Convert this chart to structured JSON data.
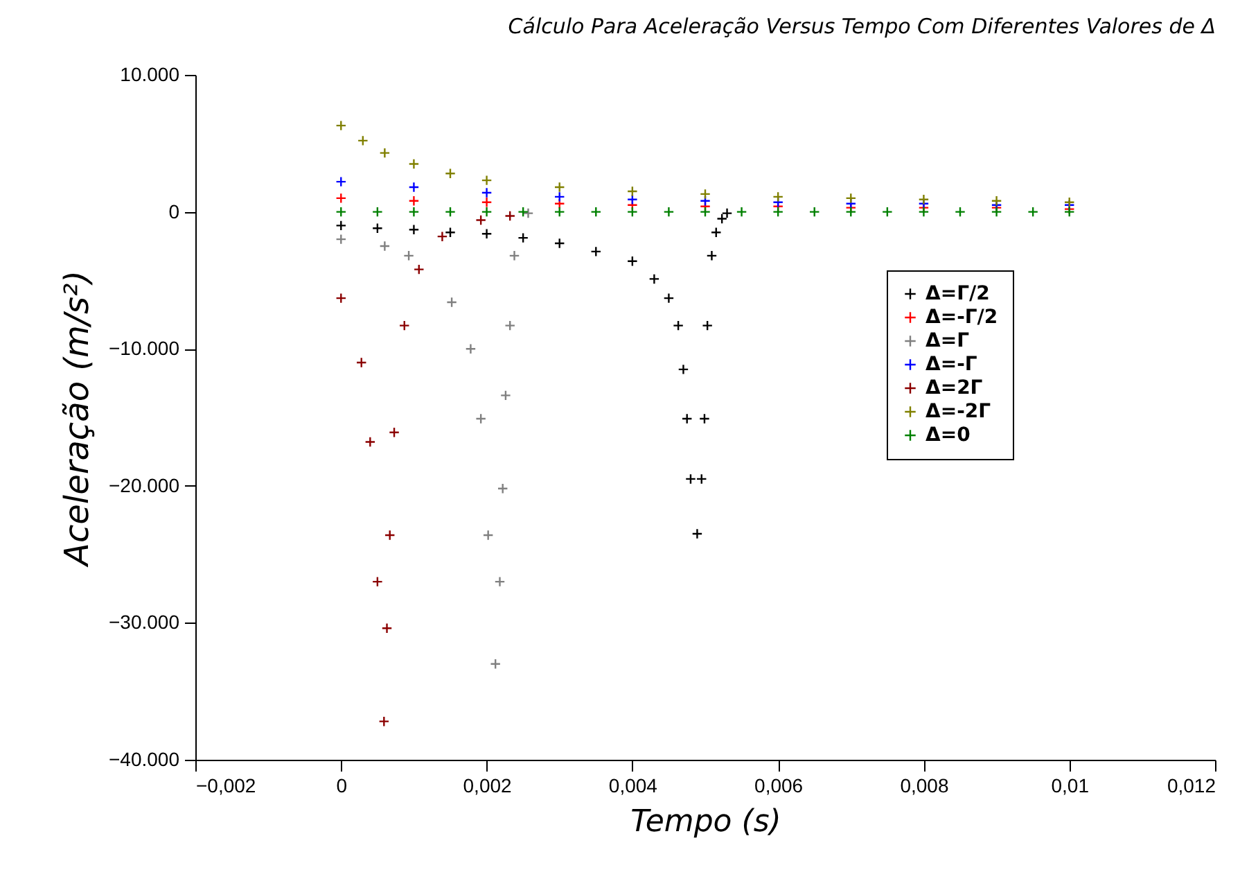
{
  "chart_data": {
    "type": "scatter",
    "title": "Cálculo Para Aceleração Versus Tempo Com Diferentes Valores de Δ",
    "xlabel": "Tempo (s)",
    "ylabel": "Aceleração (m/s²)",
    "xlim": [
      -0.002,
      0.012
    ],
    "ylim": [
      -40000,
      10000
    ],
    "xticks": [
      {
        "value": -0.002,
        "label": "−0,002"
      },
      {
        "value": 0,
        "label": "0"
      },
      {
        "value": 0.002,
        "label": "0,002"
      },
      {
        "value": 0.004,
        "label": "0,004"
      },
      {
        "value": 0.006,
        "label": "0,006"
      },
      {
        "value": 0.008,
        "label": "0,008"
      },
      {
        "value": 0.01,
        "label": "0,01"
      },
      {
        "value": 0.012,
        "label": "0,012"
      }
    ],
    "yticks": [
      {
        "value": -40000,
        "label": "−40.000"
      },
      {
        "value": -30000,
        "label": "−30.000"
      },
      {
        "value": -20000,
        "label": "−20.000"
      },
      {
        "value": -10000,
        "label": "−10.000"
      },
      0,
      {
        "value": 10000,
        "label": "10.000"
      }
    ],
    "grid": false,
    "legend": "right",
    "series": [
      {
        "name": "Δ=Γ/2",
        "color": "#000000",
        "marker": "cross",
        "x": [
          0,
          0.0005,
          0.001,
          0.0015,
          0.002,
          0.0025,
          0.003,
          0.0035,
          0.004,
          0.0043,
          0.0045,
          0.00463,
          0.0047,
          0.00475,
          0.0048,
          0.00489,
          0.00495,
          0.00499,
          0.00503,
          0.00509,
          0.00515,
          0.00523,
          0.0053
        ],
        "values": [
          -1000,
          -1200,
          -1300,
          -1500,
          -1600,
          -1900,
          -2300,
          -2900,
          -3600,
          -4900,
          -6300,
          -8300,
          -11500,
          -15100,
          -19500,
          -23500,
          -19500,
          -15100,
          -8300,
          -3200,
          -1500,
          -500,
          -100
        ]
      },
      {
        "name": "Δ=-Γ/2",
        "color": "#ff0000",
        "marker": "cross",
        "x": [
          0,
          0.001,
          0.002,
          0.003,
          0.004,
          0.005,
          0.006,
          0.007,
          0.008,
          0.009,
          0.01
        ],
        "values": [
          1000,
          800,
          700,
          600,
          500,
          400,
          400,
          300,
          300,
          300,
          200
        ]
      },
      {
        "name": "Δ=Γ",
        "color": "#808080",
        "marker": "cross",
        "x": [
          0,
          0.0006,
          0.00093,
          0.00152,
          0.00178,
          0.00192,
          0.00202,
          0.00212,
          0.00218,
          0.00222,
          0.00226,
          0.00232,
          0.00238,
          0.00257
        ],
        "values": [
          -2000,
          -2500,
          -3200,
          -6600,
          -10000,
          -15100,
          -23600,
          -33000,
          -27000,
          -20200,
          -13400,
          -8300,
          -3200,
          -100
        ]
      },
      {
        "name": "Δ=-Γ",
        "color": "#0000ff",
        "marker": "cross",
        "x": [
          0,
          0.001,
          0.002,
          0.003,
          0.004,
          0.005,
          0.006,
          0.007,
          0.008,
          0.009,
          0.01
        ],
        "values": [
          2200,
          1800,
          1400,
          1100,
          900,
          800,
          700,
          600,
          600,
          500,
          500
        ]
      },
      {
        "name": "Δ=2Γ",
        "color": "#8b0000",
        "marker": "cross",
        "x": [
          0,
          0.00028,
          0.0004,
          0.0005,
          0.00059,
          0.00063,
          0.00067,
          0.00073,
          0.00087,
          0.00107,
          0.00139,
          0.00192,
          0.00232
        ],
        "values": [
          -6300,
          -11000,
          -16800,
          -27000,
          -37200,
          -30400,
          -23600,
          -16100,
          -8300,
          -4200,
          -1800,
          -600,
          -300
        ]
      },
      {
        "name": "Δ=-2Γ",
        "color": "#808000",
        "marker": "cross",
        "x": [
          0,
          0.0003,
          0.0006,
          0.001,
          0.0015,
          0.002,
          0.003,
          0.004,
          0.005,
          0.006,
          0.007,
          0.008,
          0.009,
          0.01
        ],
        "values": [
          6300,
          5200,
          4300,
          3500,
          2800,
          2300,
          1800,
          1500,
          1300,
          1100,
          1000,
          900,
          800,
          700
        ]
      },
      {
        "name": "Δ=0",
        "color": "#008000",
        "marker": "cross",
        "x": [
          0,
          0.0005,
          0.001,
          0.0015,
          0.002,
          0.0025,
          0.003,
          0.0035,
          0.004,
          0.0045,
          0.005,
          0.0055,
          0.006,
          0.0065,
          0.007,
          0.0075,
          0.008,
          0.0085,
          0.009,
          0.0095,
          0.01
        ],
        "values": [
          0,
          0,
          0,
          0,
          0,
          0,
          0,
          0,
          0,
          0,
          0,
          0,
          0,
          0,
          0,
          0,
          0,
          0,
          0,
          0,
          0
        ]
      }
    ]
  }
}
